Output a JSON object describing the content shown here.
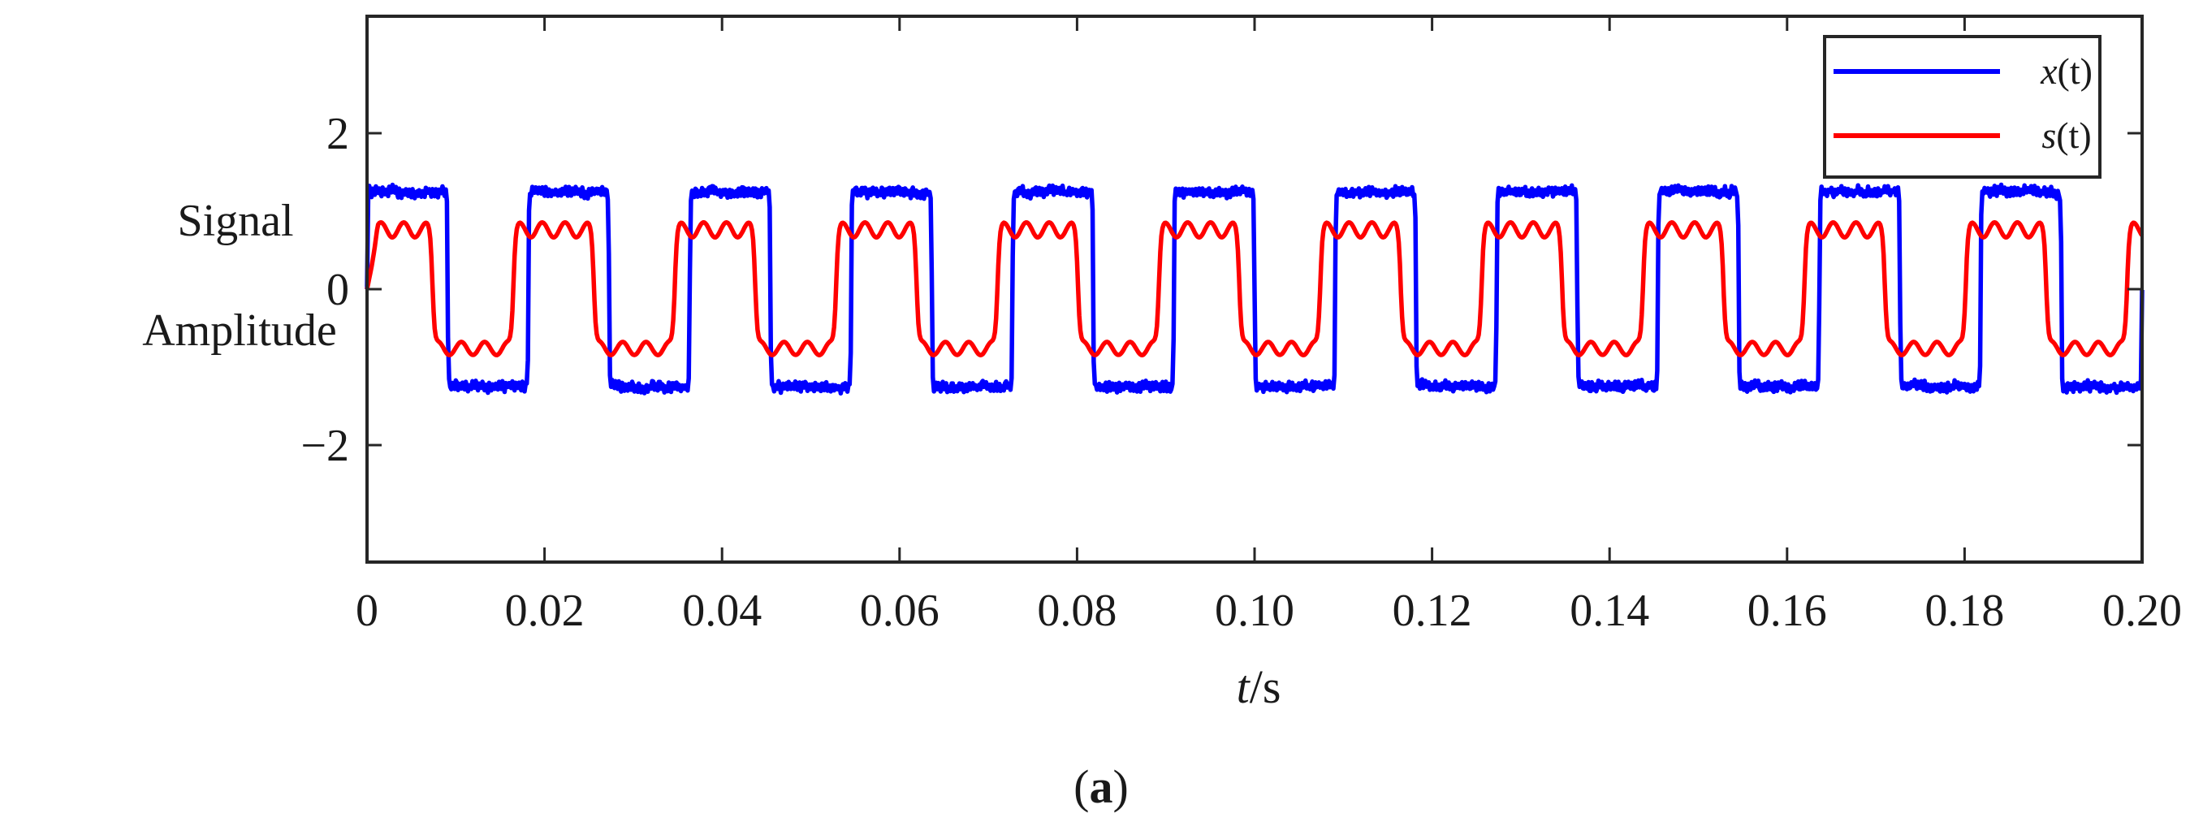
{
  "chart_data": {
    "type": "line",
    "title": "",
    "panel_label": "a",
    "ylabel_lines": [
      "Signal",
      "Amplitude"
    ],
    "xlabel": {
      "var": "t",
      "unit": "/s"
    },
    "xlim": [
      0,
      0.2
    ],
    "ylim": [
      -3.5,
      3.5
    ],
    "xticks": [
      0,
      0.02,
      0.04,
      0.06,
      0.08,
      0.1,
      0.12,
      0.14,
      0.16,
      0.18,
      0.2
    ],
    "xtick_labels": [
      "0",
      "0.02",
      "0.04",
      "0.06",
      "0.08",
      "0.10",
      "0.12",
      "0.14",
      "0.16",
      "0.18",
      "0.20"
    ],
    "yticks": [
      -2,
      0,
      2
    ],
    "ytick_labels": [
      "−2",
      "0",
      "2"
    ],
    "grid": false,
    "legend_position": "top-right",
    "signal_frequency_hz": 55,
    "series": [
      {
        "name": "x(t)",
        "legend_var": "x",
        "legend_arg": "(t)",
        "color": "#0000ff",
        "description": "noisy square-like wave, plateaus about ±1.3",
        "approx_points": [
          [
            0,
            0
          ],
          [
            0.003,
            1.35
          ],
          [
            0.008,
            1.25
          ],
          [
            0.0135,
            -1.25
          ],
          [
            0.017,
            -1.35
          ],
          [
            0.0225,
            1.3
          ],
          [
            0.027,
            1.3
          ],
          [
            0.0315,
            -1.3
          ],
          [
            0.035,
            -1.4
          ],
          [
            0.0405,
            1.3
          ],
          [
            0.045,
            1.35
          ]
        ]
      },
      {
        "name": "s(t)",
        "legend_var": "s",
        "legend_arg": "(t)",
        "color": "#ff0000",
        "description": "smoothed, phase-advanced wave, plateaus about ±0.85 with ripples",
        "approx_points": [
          [
            0,
            0
          ],
          [
            0.002,
            0.95
          ],
          [
            0.006,
            0.8
          ],
          [
            0.0105,
            -0.7
          ],
          [
            0.016,
            -0.95
          ],
          [
            0.0205,
            0.9
          ],
          [
            0.025,
            0.75
          ],
          [
            0.0295,
            -0.75
          ],
          [
            0.034,
            -0.95
          ],
          [
            0.0385,
            0.85
          ],
          [
            0.043,
            0.9
          ]
        ]
      }
    ]
  }
}
